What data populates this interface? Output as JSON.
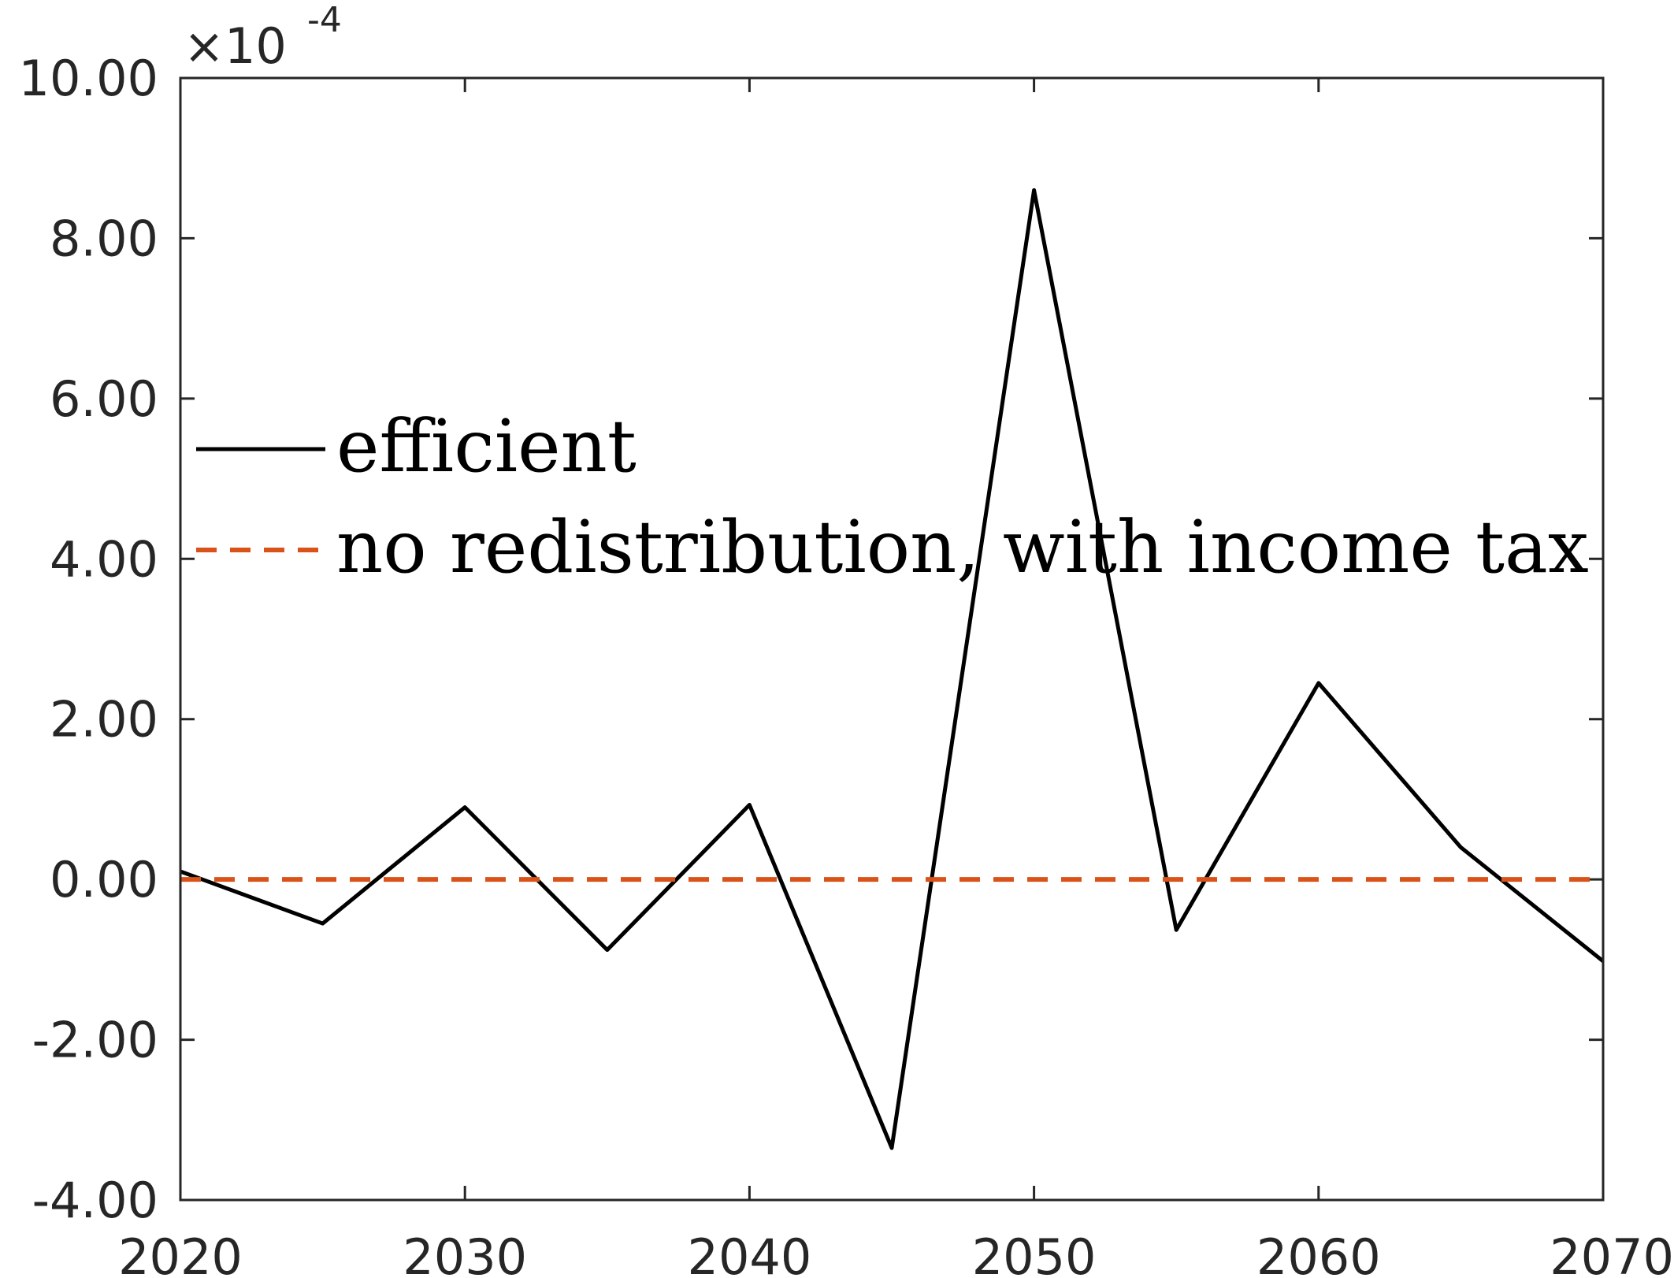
{
  "chart_data": {
    "type": "line",
    "title": "",
    "xlabel": "",
    "ylabel": "",
    "xlim": [
      2020,
      2070
    ],
    "ylim": [
      -4.0,
      10.0
    ],
    "y_exponent": {
      "times": "×10",
      "power": "-4"
    },
    "xticks": [
      2020,
      2030,
      2040,
      2050,
      2060,
      2070
    ],
    "xtick_labels": [
      "2020",
      "2030",
      "2040",
      "2050",
      "2060",
      "2070"
    ],
    "yticks": [
      -4,
      -2,
      0,
      2,
      4,
      6,
      8,
      10
    ],
    "ytick_labels": [
      "-4.00",
      "-2.00",
      "0.00",
      "2.00",
      "4.00",
      "6.00",
      "8.00",
      "10.00"
    ],
    "grid": false,
    "legend_position": "center-left",
    "series": [
      {
        "name": "efficient",
        "color": "#000000",
        "style": "solid",
        "x": [
          2020,
          2025,
          2030,
          2035,
          2040,
          2045,
          2050,
          2055,
          2060,
          2065,
          2070
        ],
        "y": [
          0.1,
          -0.55,
          0.9,
          -0.88,
          0.93,
          -3.35,
          8.6,
          -0.63,
          2.45,
          0.4,
          -1.02
        ]
      },
      {
        "name": "no redistribution, with income tax",
        "color": "#d95319",
        "style": "dashed",
        "x": [
          2020,
          2070
        ],
        "y": [
          0.0,
          0.0
        ]
      }
    ]
  }
}
